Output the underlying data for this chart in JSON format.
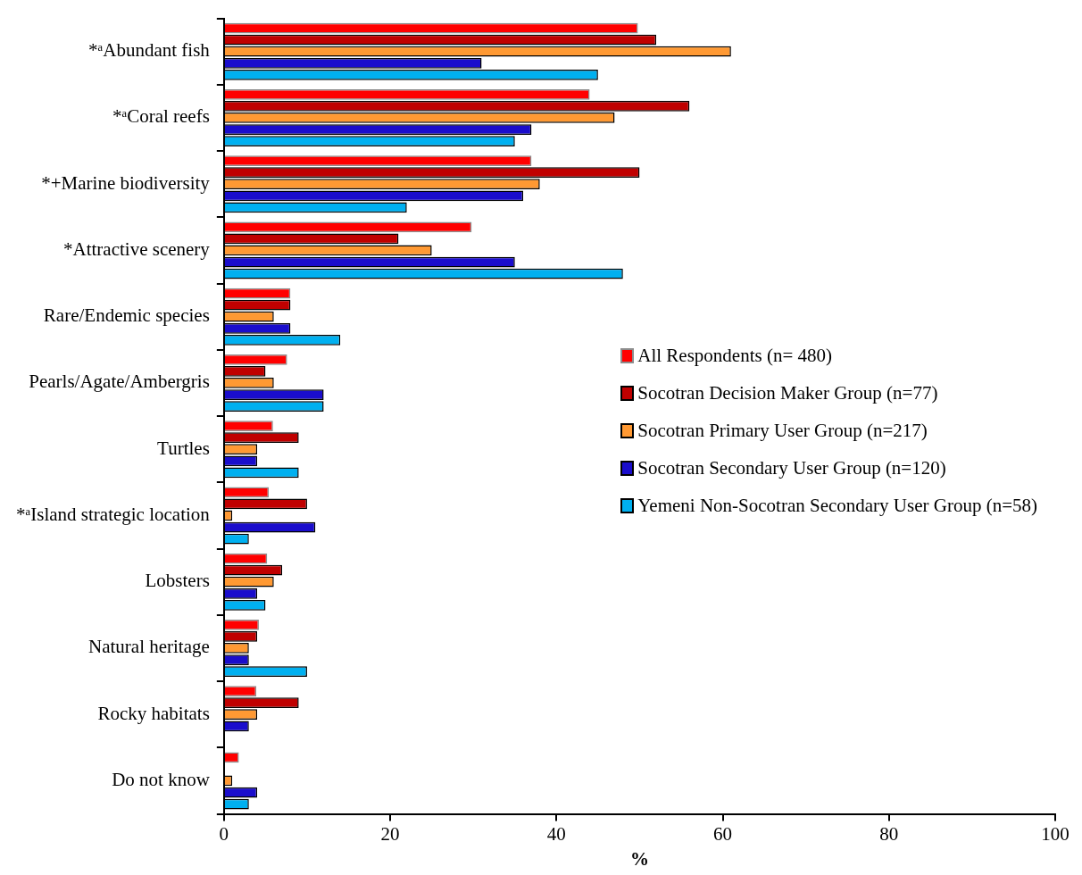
{
  "chart_data": {
    "type": "bar",
    "orientation": "horizontal",
    "xlabel": "%",
    "categories": [
      "*ᵃAbundant fish",
      "*ᵃCoral reefs",
      "*+Marine biodiversity",
      "*Attractive scenery",
      "Rare/Endemic species",
      "Pearls/Agate/Ambergris",
      "Turtles",
      "*ᵃIsland strategic location",
      "Lobsters",
      "Natural heritage",
      "Rocky habitats",
      "Do not know"
    ],
    "series": [
      {
        "name": "All Respondents (n= 480)",
        "color": "#ff0000",
        "values": [
          49.8,
          44,
          37,
          29.8,
          8,
          7.6,
          5.9,
          5.4,
          5.2,
          4.2,
          3.9,
          1.8
        ]
      },
      {
        "name": "Socotran Decision Maker Group (n=77)",
        "color": "#c00000",
        "values": [
          52,
          56,
          50,
          21,
          8,
          5,
          9,
          10,
          7,
          4,
          9,
          0
        ]
      },
      {
        "name": "Socotran Primary User Group (n=217)",
        "color": "#ff9933",
        "values": [
          61,
          47,
          38,
          25,
          6,
          6,
          4,
          1,
          6,
          3,
          4,
          1
        ]
      },
      {
        "name": "Socotran Secondary User Group (n=120)",
        "color": "#1a0dcc",
        "values": [
          31,
          37,
          36,
          35,
          8,
          12,
          4,
          11,
          4,
          3,
          3,
          4
        ]
      },
      {
        "name": "Yemeni Non-Socotran Secondary User Group (n=58)",
        "color": "#00b0f0",
        "values": [
          45,
          35,
          22,
          48,
          14,
          12,
          9,
          3,
          5,
          10,
          0,
          3
        ]
      }
    ],
    "xlim": [
      0,
      100
    ],
    "xticks": [
      0,
      20,
      40,
      60,
      80,
      100
    ],
    "grid": false,
    "legend": "right"
  }
}
